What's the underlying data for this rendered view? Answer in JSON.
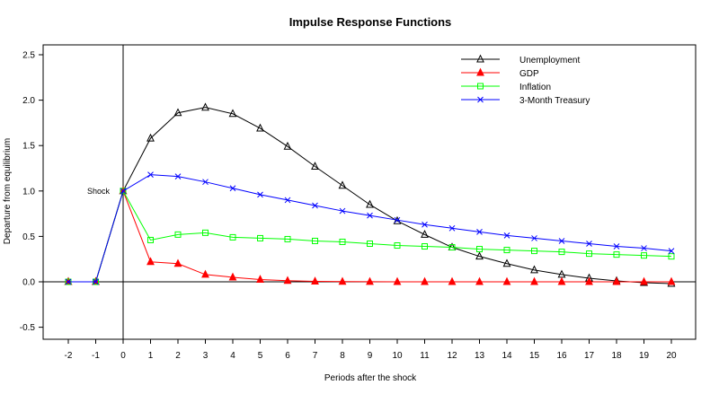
{
  "chart_data": {
    "type": "line",
    "title": "Impulse Response Functions",
    "xlabel": "Periods after the shock",
    "ylabel": "Departure from equilibrium",
    "x": [
      -2,
      -1,
      0,
      1,
      2,
      3,
      4,
      5,
      6,
      7,
      8,
      9,
      10,
      11,
      12,
      13,
      14,
      15,
      16,
      17,
      18,
      19,
      20
    ],
    "xlim": [
      -2,
      20
    ],
    "ylim": [
      -0.5,
      2.5
    ],
    "y_ticks": [
      "-0.5",
      "0.0",
      "0.5",
      "1.0",
      "1.5",
      "2.0",
      "2.5"
    ],
    "grid": false,
    "legend_position": "top-right",
    "annotations": [
      {
        "text": "Shock",
        "x": 0,
        "y": 1.0
      }
    ],
    "reference_lines": {
      "horizontal_y": 0,
      "vertical_x": 0
    },
    "series": [
      {
        "name": "Unemployment",
        "color": "#000000",
        "marker": "triangle-open",
        "values": [
          0,
          0,
          1.0,
          1.58,
          1.86,
          1.92,
          1.85,
          1.69,
          1.49,
          1.27,
          1.06,
          0.85,
          0.67,
          0.52,
          0.38,
          0.28,
          0.2,
          0.13,
          0.08,
          0.04,
          0.01,
          -0.01,
          -0.02
        ]
      },
      {
        "name": "GDP",
        "color": "#ff0000",
        "marker": "triangle-filled",
        "values": [
          0,
          0,
          1.0,
          0.22,
          0.2,
          0.08,
          0.05,
          0.025,
          0.012,
          0.005,
          0.002,
          0.001,
          0,
          0,
          0,
          0,
          0,
          0,
          0,
          0,
          0,
          0,
          0
        ]
      },
      {
        "name": "Inflation",
        "color": "#00ff00",
        "marker": "square-open",
        "values": [
          0,
          0,
          1.0,
          0.46,
          0.52,
          0.54,
          0.49,
          0.48,
          0.47,
          0.45,
          0.44,
          0.42,
          0.4,
          0.39,
          0.38,
          0.36,
          0.35,
          0.34,
          0.33,
          0.31,
          0.3,
          0.29,
          0.28
        ]
      },
      {
        "name": "3-Month Treasury",
        "color": "#0000ff",
        "marker": "x",
        "values": [
          0,
          0,
          1.0,
          1.18,
          1.16,
          1.1,
          1.03,
          0.96,
          0.9,
          0.84,
          0.78,
          0.73,
          0.68,
          0.63,
          0.59,
          0.55,
          0.51,
          0.48,
          0.45,
          0.42,
          0.39,
          0.37,
          0.34
        ]
      }
    ]
  }
}
